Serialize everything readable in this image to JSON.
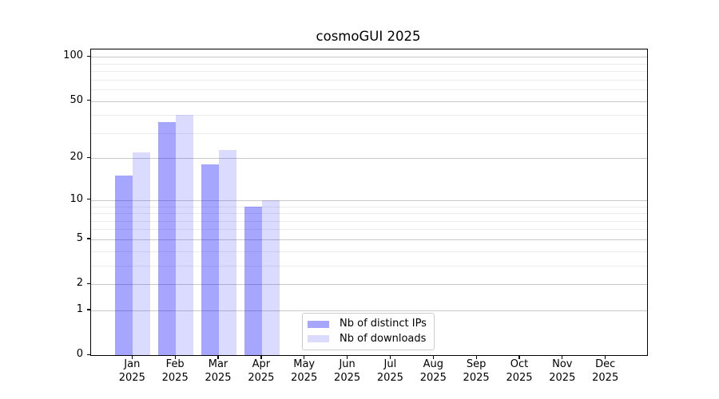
{
  "chart_data": {
    "type": "bar",
    "title": "cosmoGUI 2025",
    "categories": [
      "Jan",
      "Feb",
      "Mar",
      "Apr",
      "May",
      "Jun",
      "Jul",
      "Aug",
      "Sep",
      "Oct",
      "Nov",
      "Dec"
    ],
    "x_tick_year_line": "2025",
    "series": [
      {
        "name": "Nb of distinct IPs",
        "values": [
          15,
          36,
          18,
          9,
          0,
          0,
          0,
          0,
          0,
          0,
          0,
          0
        ],
        "color": "#0000FF",
        "alpha": 0.35
      },
      {
        "name": "Nb of downloads",
        "values": [
          22,
          40,
          23,
          10,
          0,
          0,
          0,
          0,
          0,
          0,
          0,
          0
        ],
        "color": "#0000FF",
        "alpha": 0.14
      }
    ],
    "yscale": "log1p",
    "ylim": [
      0,
      112
    ],
    "y_major_ticks": [
      0,
      1,
      2,
      5,
      10,
      20,
      50,
      100
    ],
    "y_minor_ticks": [
      3,
      4,
      6,
      7,
      8,
      9,
      30,
      40,
      60,
      70,
      80,
      90
    ],
    "grid": true,
    "legend_position": "lower center-left inside plot"
  },
  "colors": {
    "major_grid": "#c9c9c9",
    "minor_grid": "#ececec",
    "axis": "#000000",
    "legend_border": "#cccccc",
    "background": "#ffffff"
  }
}
